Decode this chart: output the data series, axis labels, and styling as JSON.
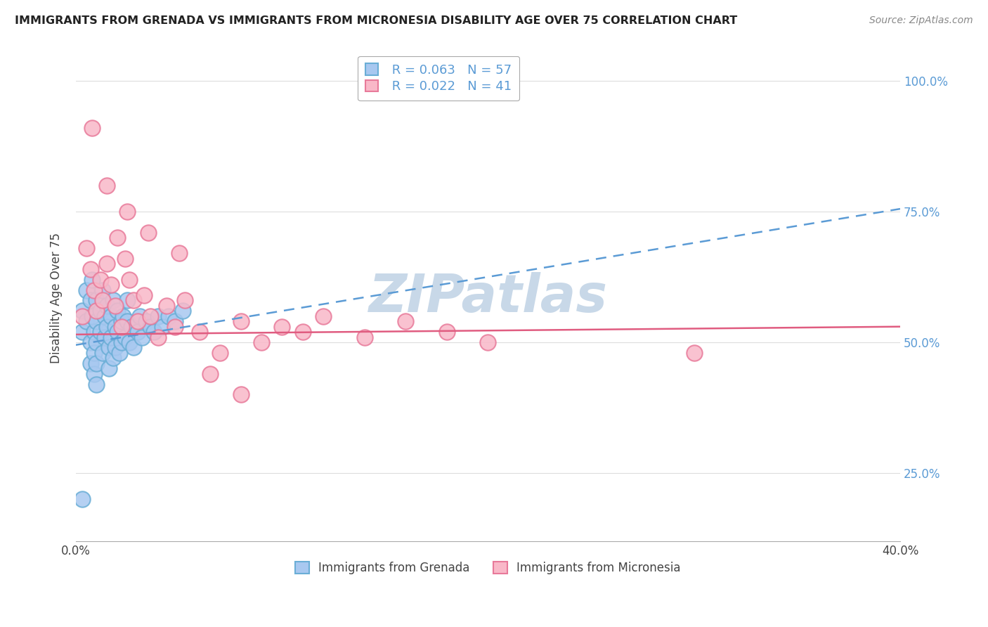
{
  "title": "IMMIGRANTS FROM GRENADA VS IMMIGRANTS FROM MICRONESIA DISABILITY AGE OVER 75 CORRELATION CHART",
  "source": "Source: ZipAtlas.com",
  "ylabel": "Disability Age Over 75",
  "legend_label_blue": "Immigrants from Grenada",
  "legend_label_pink": "Immigrants from Micronesia",
  "r_blue": 0.063,
  "n_blue": 57,
  "r_pink": 0.022,
  "n_pink": 41,
  "xlim": [
    0.0,
    0.4
  ],
  "ylim": [
    0.12,
    1.05
  ],
  "xticks": [
    0.0,
    0.1,
    0.2,
    0.3,
    0.4
  ],
  "xtick_labels": [
    "0.0%",
    "",
    "",
    "",
    "40.0%"
  ],
  "yticks": [
    0.25,
    0.5,
    0.75,
    1.0
  ],
  "ytick_labels": [
    "25.0%",
    "50.0%",
    "75.0%",
    "100.0%"
  ],
  "color_blue": "#a8c8f0",
  "color_blue_edge": "#6aaed6",
  "color_pink": "#f9b8c8",
  "color_pink_edge": "#e87a9a",
  "color_blue_line": "#5b9bd5",
  "color_pink_line": "#e05c80",
  "watermark_color": "#c8d8e8",
  "background_color": "#ffffff",
  "blue_line_y0": 0.495,
  "blue_line_y1": 0.755,
  "pink_line_y0": 0.515,
  "pink_line_y1": 0.53,
  "grenada_x": [
    0.003,
    0.003,
    0.005,
    0.005,
    0.007,
    0.007,
    0.007,
    0.008,
    0.008,
    0.009,
    0.009,
    0.009,
    0.01,
    0.01,
    0.01,
    0.01,
    0.01,
    0.012,
    0.012,
    0.013,
    0.013,
    0.014,
    0.014,
    0.015,
    0.015,
    0.016,
    0.016,
    0.017,
    0.017,
    0.018,
    0.018,
    0.019,
    0.019,
    0.02,
    0.02,
    0.021,
    0.022,
    0.022,
    0.023,
    0.024,
    0.025,
    0.025,
    0.026,
    0.027,
    0.028,
    0.03,
    0.031,
    0.032,
    0.034,
    0.036,
    0.038,
    0.04,
    0.042,
    0.045,
    0.048,
    0.052,
    0.003
  ],
  "grenada_y": [
    0.56,
    0.52,
    0.6,
    0.54,
    0.58,
    0.5,
    0.46,
    0.55,
    0.62,
    0.52,
    0.48,
    0.44,
    0.58,
    0.54,
    0.5,
    0.46,
    0.42,
    0.56,
    0.52,
    0.6,
    0.48,
    0.55,
    0.51,
    0.57,
    0.53,
    0.49,
    0.45,
    0.55,
    0.51,
    0.58,
    0.47,
    0.53,
    0.49,
    0.56,
    0.52,
    0.48,
    0.54,
    0.5,
    0.55,
    0.51,
    0.58,
    0.54,
    0.5,
    0.53,
    0.49,
    0.52,
    0.55,
    0.51,
    0.54,
    0.53,
    0.52,
    0.55,
    0.53,
    0.55,
    0.54,
    0.56,
    0.2
  ],
  "micronesia_x": [
    0.003,
    0.005,
    0.007,
    0.009,
    0.01,
    0.012,
    0.013,
    0.015,
    0.017,
    0.019,
    0.02,
    0.022,
    0.024,
    0.026,
    0.028,
    0.03,
    0.033,
    0.036,
    0.04,
    0.044,
    0.048,
    0.053,
    0.06,
    0.07,
    0.08,
    0.09,
    0.1,
    0.11,
    0.12,
    0.14,
    0.16,
    0.18,
    0.2,
    0.025,
    0.015,
    0.008,
    0.035,
    0.05,
    0.065,
    0.08,
    0.3
  ],
  "micronesia_y": [
    0.55,
    0.68,
    0.64,
    0.6,
    0.56,
    0.62,
    0.58,
    0.65,
    0.61,
    0.57,
    0.7,
    0.53,
    0.66,
    0.62,
    0.58,
    0.54,
    0.59,
    0.55,
    0.51,
    0.57,
    0.53,
    0.58,
    0.52,
    0.48,
    0.54,
    0.5,
    0.53,
    0.52,
    0.55,
    0.51,
    0.54,
    0.52,
    0.5,
    0.75,
    0.8,
    0.91,
    0.71,
    0.67,
    0.44,
    0.4,
    0.48
  ]
}
